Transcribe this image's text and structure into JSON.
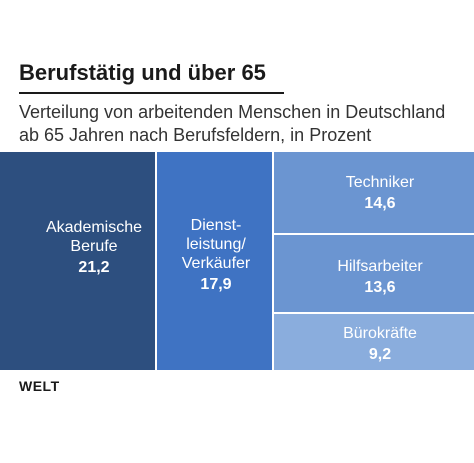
{
  "header": {
    "title": "Berufstätig und über 65",
    "subtitle_line1": "Verteilung von arbeitenden Menschen in Deutschland",
    "subtitle_line2": "ab 65 Jahren nach Berufsfeldern, in Prozent"
  },
  "source": "WELT",
  "chart_data": {
    "type": "treemap",
    "title": "Berufstätig und über 65",
    "subtitle": "Verteilung von arbeitenden Menschen in Deutschland ab 65 Jahren nach Berufsfeldern, in Prozent",
    "unit": "Prozent",
    "items": [
      {
        "label_lines": [
          "Akademische",
          "Berufe"
        ],
        "value": 21.2,
        "value_label": "21,2",
        "color": "#2d4f7f"
      },
      {
        "label_lines": [
          "Dienst-",
          "leistung/",
          "Verkäufer"
        ],
        "value": 17.9,
        "value_label": "17,9",
        "color": "#3f73c3"
      },
      {
        "label_lines": [
          "Techniker"
        ],
        "value": 14.6,
        "value_label": "14,6",
        "color": "#6b95d1"
      },
      {
        "label_lines": [
          "Hilfsarbeiter"
        ],
        "value": 13.6,
        "value_label": "13,6",
        "color": "#6b95d1"
      },
      {
        "label_lines": [
          "Bürokräfte"
        ],
        "value": 9.2,
        "value_label": "9,2",
        "color": "#8aaddd"
      }
    ]
  }
}
